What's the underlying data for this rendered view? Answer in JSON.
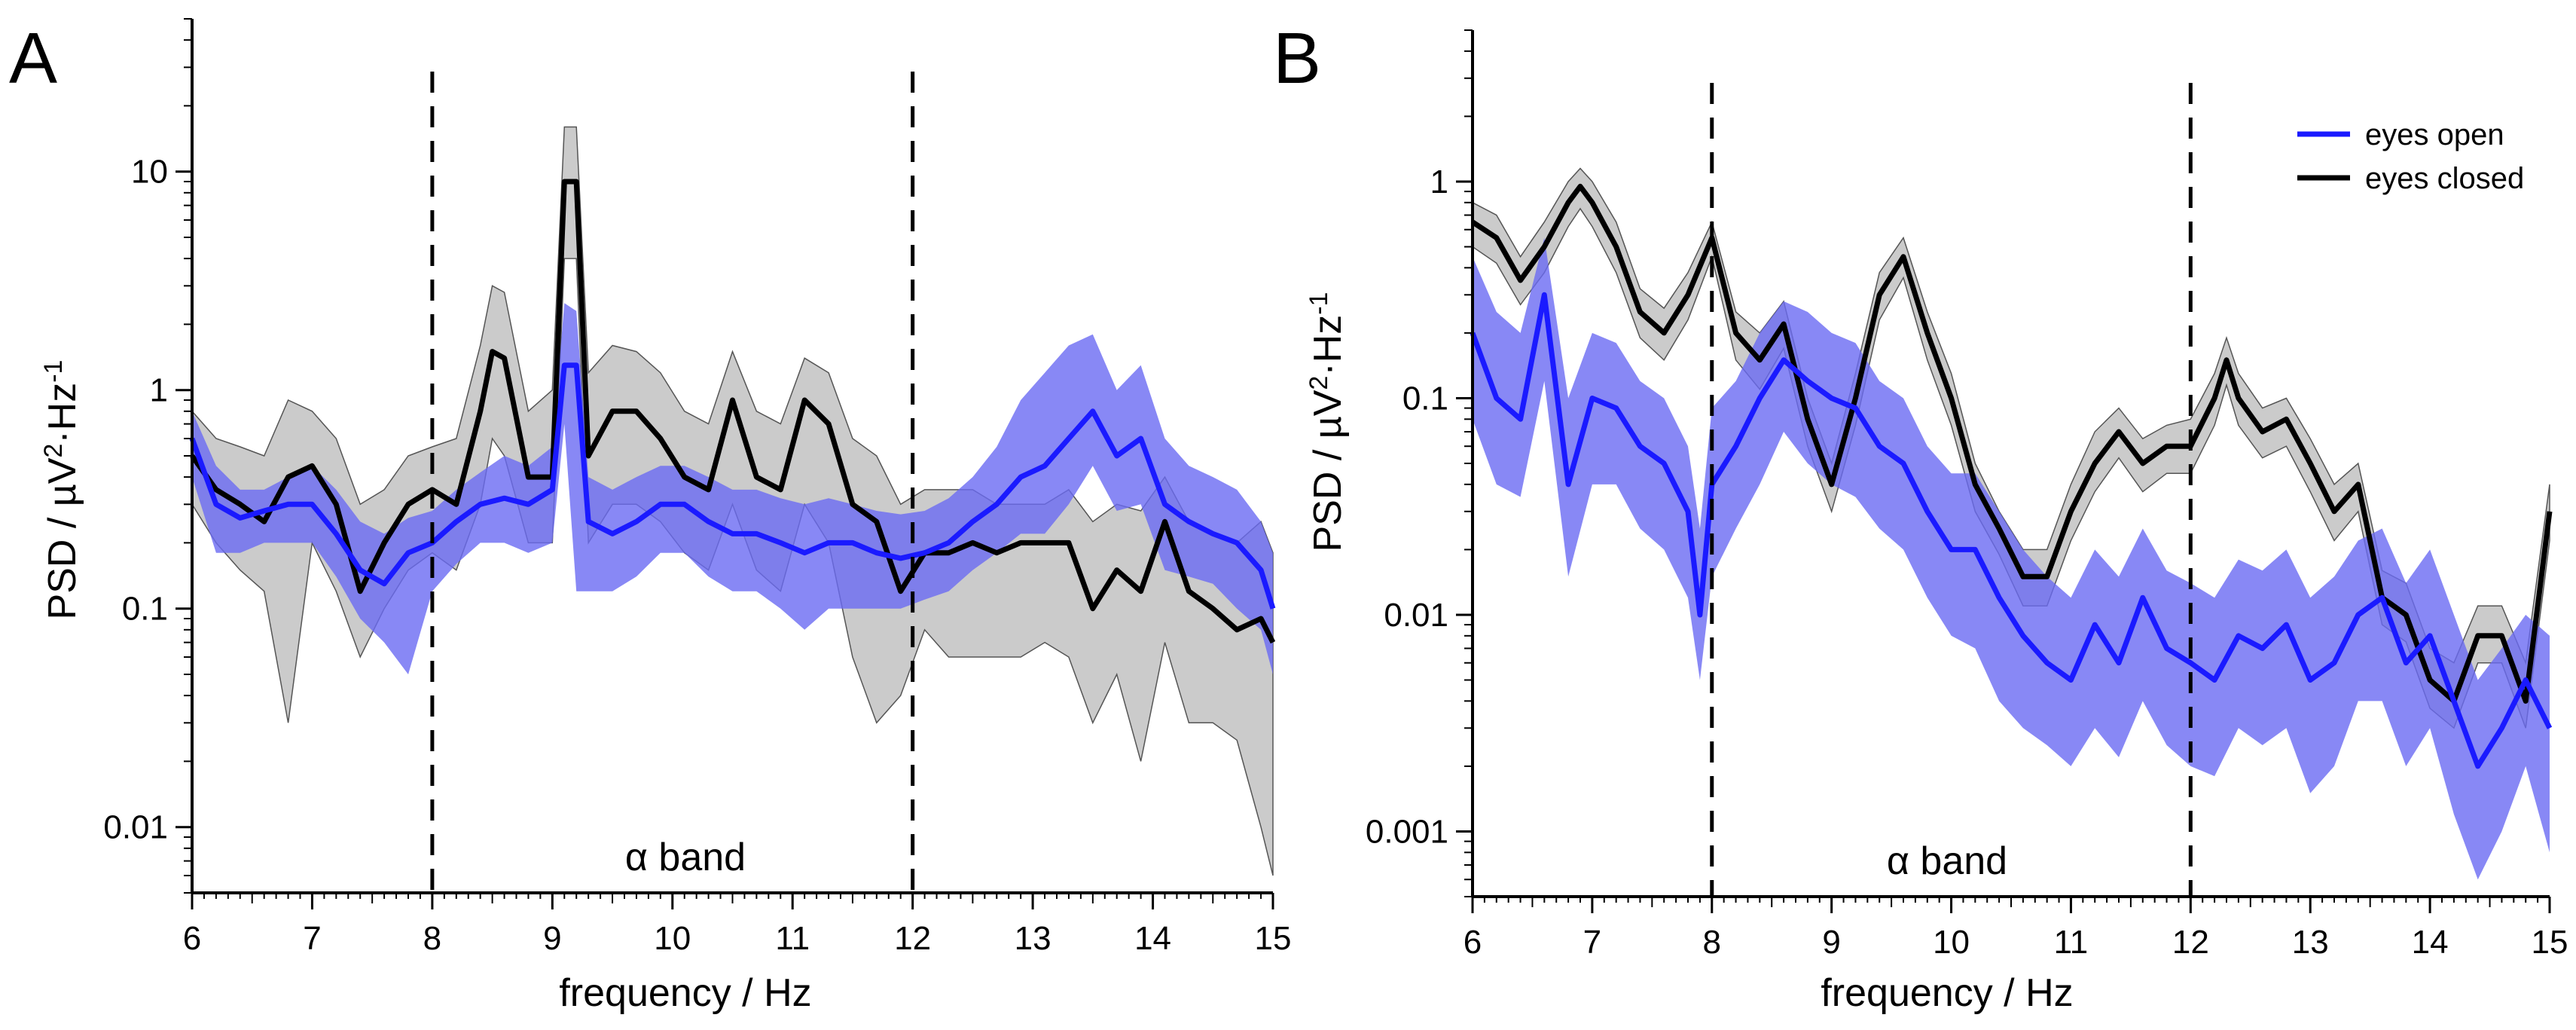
{
  "chart_data": [
    {
      "panel_label": "A",
      "type": "line",
      "scale": "log-y",
      "xlabel": "frequency / Hz",
      "ylabel": "PSD / µV²·Hz⁻¹",
      "ylabel_parts": {
        "base": "PSD / µV",
        "sup1": "2",
        "mid": "·Hz",
        "sup2": "-1"
      },
      "xlim": [
        6,
        15
      ],
      "ylim": [
        0.005,
        50
      ],
      "xticks": [
        6,
        7,
        8,
        9,
        10,
        11,
        12,
        13,
        14,
        15
      ],
      "xtick_labels": [
        "6",
        "7",
        "8",
        "9",
        "10",
        "11",
        "12",
        "13",
        "14",
        "15"
      ],
      "yticks": [
        0.01,
        0.1,
        1,
        10
      ],
      "ytick_labels": [
        "0.01",
        "0.1",
        "1",
        "10"
      ],
      "band_label": "α band",
      "band": [
        8,
        12
      ],
      "series": [
        {
          "name": "eyes open",
          "color": "#1a1aff",
          "band_color": "#6a6af2",
          "x": [
            6.0,
            6.2,
            6.4,
            6.6,
            6.8,
            7.0,
            7.2,
            7.4,
            7.6,
            7.8,
            8.0,
            8.2,
            8.4,
            8.6,
            8.8,
            9.0,
            9.1,
            9.2,
            9.3,
            9.5,
            9.7,
            9.9,
            10.1,
            10.3,
            10.5,
            10.7,
            10.9,
            11.1,
            11.3,
            11.5,
            11.7,
            11.9,
            12.1,
            12.3,
            12.5,
            12.7,
            12.9,
            13.1,
            13.3,
            13.5,
            13.7,
            13.9,
            14.1,
            14.3,
            14.5,
            14.7,
            14.9,
            15.0
          ],
          "mean": [
            0.6,
            0.3,
            0.26,
            0.28,
            0.3,
            0.3,
            0.22,
            0.15,
            0.13,
            0.18,
            0.2,
            0.25,
            0.3,
            0.32,
            0.3,
            0.35,
            1.3,
            1.3,
            0.25,
            0.22,
            0.25,
            0.3,
            0.3,
            0.25,
            0.22,
            0.22,
            0.2,
            0.18,
            0.2,
            0.2,
            0.18,
            0.17,
            0.18,
            0.2,
            0.25,
            0.3,
            0.4,
            0.45,
            0.6,
            0.8,
            0.5,
            0.6,
            0.3,
            0.25,
            0.22,
            0.2,
            0.15,
            0.1
          ],
          "upper": [
            0.8,
            0.45,
            0.35,
            0.35,
            0.4,
            0.45,
            0.35,
            0.25,
            0.22,
            0.26,
            0.28,
            0.35,
            0.42,
            0.5,
            0.45,
            0.55,
            2.5,
            2.3,
            0.4,
            0.35,
            0.4,
            0.45,
            0.45,
            0.4,
            0.35,
            0.35,
            0.32,
            0.3,
            0.32,
            0.3,
            0.28,
            0.27,
            0.28,
            0.32,
            0.4,
            0.55,
            0.9,
            1.2,
            1.6,
            1.8,
            1.0,
            1.3,
            0.6,
            0.45,
            0.4,
            0.35,
            0.25,
            0.18
          ],
          "lower": [
            0.4,
            0.18,
            0.18,
            0.2,
            0.2,
            0.2,
            0.14,
            0.09,
            0.07,
            0.05,
            0.12,
            0.16,
            0.2,
            0.2,
            0.18,
            0.2,
            0.7,
            0.12,
            0.12,
            0.12,
            0.14,
            0.18,
            0.18,
            0.14,
            0.12,
            0.12,
            0.1,
            0.08,
            0.1,
            0.1,
            0.1,
            0.1,
            0.11,
            0.12,
            0.15,
            0.18,
            0.22,
            0.22,
            0.3,
            0.45,
            0.28,
            0.3,
            0.15,
            0.14,
            0.13,
            0.1,
            0.08,
            0.05
          ]
        },
        {
          "name": "eyes closed",
          "color": "#000000",
          "band_color": "#c8c8c8",
          "x": [
            6.0,
            6.2,
            6.4,
            6.6,
            6.8,
            7.0,
            7.2,
            7.4,
            7.6,
            7.8,
            8.0,
            8.2,
            8.4,
            8.5,
            8.6,
            8.8,
            9.0,
            9.1,
            9.2,
            9.3,
            9.5,
            9.7,
            9.9,
            10.1,
            10.3,
            10.5,
            10.7,
            10.9,
            11.1,
            11.3,
            11.5,
            11.7,
            11.9,
            12.1,
            12.3,
            12.5,
            12.7,
            12.9,
            13.1,
            13.3,
            13.5,
            13.7,
            13.9,
            14.1,
            14.3,
            14.5,
            14.7,
            14.9,
            15.0
          ],
          "mean": [
            0.5,
            0.35,
            0.3,
            0.25,
            0.4,
            0.45,
            0.3,
            0.12,
            0.2,
            0.3,
            0.35,
            0.3,
            0.8,
            1.5,
            1.4,
            0.4,
            0.4,
            9.0,
            9.0,
            0.5,
            0.8,
            0.8,
            0.6,
            0.4,
            0.35,
            0.9,
            0.4,
            0.35,
            0.9,
            0.7,
            0.3,
            0.25,
            0.12,
            0.18,
            0.18,
            0.2,
            0.18,
            0.2,
            0.2,
            0.2,
            0.1,
            0.15,
            0.12,
            0.25,
            0.12,
            0.1,
            0.08,
            0.09,
            0.07
          ],
          "upper": [
            0.8,
            0.6,
            0.55,
            0.5,
            0.9,
            0.8,
            0.6,
            0.3,
            0.35,
            0.5,
            0.55,
            0.6,
            1.6,
            3.0,
            2.8,
            0.8,
            1.0,
            16.0,
            16.0,
            1.2,
            1.6,
            1.5,
            1.2,
            0.8,
            0.7,
            1.5,
            0.8,
            0.7,
            1.4,
            1.2,
            0.6,
            0.5,
            0.3,
            0.35,
            0.35,
            0.35,
            0.3,
            0.3,
            0.3,
            0.35,
            0.25,
            0.3,
            0.28,
            0.4,
            0.25,
            0.22,
            0.2,
            0.25,
            0.18
          ],
          "lower": [
            0.3,
            0.2,
            0.15,
            0.12,
            0.03,
            0.2,
            0.12,
            0.06,
            0.1,
            0.15,
            0.18,
            0.15,
            0.3,
            0.6,
            0.5,
            0.2,
            0.2,
            4.0,
            4.0,
            0.2,
            0.3,
            0.3,
            0.25,
            0.18,
            0.15,
            0.3,
            0.15,
            0.12,
            0.3,
            0.2,
            0.06,
            0.03,
            0.04,
            0.08,
            0.06,
            0.06,
            0.06,
            0.06,
            0.07,
            0.06,
            0.03,
            0.05,
            0.02,
            0.07,
            0.03,
            0.03,
            0.025,
            0.01,
            0.006
          ]
        }
      ]
    },
    {
      "panel_label": "B",
      "type": "line",
      "scale": "log-y",
      "xlabel": "frequency / Hz",
      "ylabel": "PSD / µV²·Hz⁻¹",
      "ylabel_parts": {
        "base": "PSD / µV",
        "sup1": "2",
        "mid": "·Hz",
        "sup2": "-1"
      },
      "xlim": [
        6,
        15
      ],
      "ylim": [
        0.0005,
        5
      ],
      "xticks": [
        6,
        7,
        8,
        9,
        10,
        11,
        12,
        13,
        14,
        15
      ],
      "xtick_labels": [
        "6",
        "7",
        "8",
        "9",
        "10",
        "11",
        "12",
        "13",
        "14",
        "15"
      ],
      "yticks": [
        0.001,
        0.01,
        0.1,
        1
      ],
      "ytick_labels": [
        "0.001",
        "0.01",
        "0.1",
        "1"
      ],
      "band_label": "α band",
      "band": [
        8,
        12
      ],
      "legend": {
        "position": "top-right",
        "entries": [
          "eyes open",
          "eyes closed"
        ]
      },
      "series": [
        {
          "name": "eyes open",
          "color": "#1a1aff",
          "band_color": "#6a6af2",
          "x": [
            6.0,
            6.2,
            6.4,
            6.6,
            6.8,
            7.0,
            7.2,
            7.4,
            7.6,
            7.8,
            7.9,
            8.0,
            8.2,
            8.4,
            8.6,
            8.8,
            9.0,
            9.2,
            9.4,
            9.6,
            9.8,
            10.0,
            10.2,
            10.4,
            10.6,
            10.8,
            11.0,
            11.2,
            11.4,
            11.6,
            11.8,
            12.0,
            12.2,
            12.4,
            12.6,
            12.8,
            13.0,
            13.2,
            13.4,
            13.6,
            13.8,
            14.0,
            14.2,
            14.4,
            14.6,
            14.8,
            15.0
          ],
          "mean": [
            0.2,
            0.1,
            0.08,
            0.3,
            0.04,
            0.1,
            0.09,
            0.06,
            0.05,
            0.03,
            0.01,
            0.04,
            0.06,
            0.1,
            0.15,
            0.12,
            0.1,
            0.09,
            0.06,
            0.05,
            0.03,
            0.02,
            0.02,
            0.012,
            0.008,
            0.006,
            0.005,
            0.009,
            0.006,
            0.012,
            0.007,
            0.006,
            0.005,
            0.008,
            0.007,
            0.009,
            0.005,
            0.006,
            0.01,
            0.012,
            0.006,
            0.008,
            0.004,
            0.002,
            0.003,
            0.005,
            0.003
          ],
          "upper": [
            0.45,
            0.25,
            0.2,
            0.55,
            0.1,
            0.2,
            0.18,
            0.12,
            0.1,
            0.06,
            0.025,
            0.09,
            0.12,
            0.2,
            0.28,
            0.25,
            0.2,
            0.18,
            0.12,
            0.1,
            0.06,
            0.045,
            0.045,
            0.03,
            0.02,
            0.015,
            0.012,
            0.02,
            0.015,
            0.025,
            0.016,
            0.014,
            0.012,
            0.018,
            0.016,
            0.02,
            0.012,
            0.015,
            0.022,
            0.025,
            0.014,
            0.02,
            0.01,
            0.005,
            0.007,
            0.01,
            0.008
          ],
          "lower": [
            0.08,
            0.04,
            0.035,
            0.12,
            0.015,
            0.04,
            0.04,
            0.025,
            0.02,
            0.012,
            0.005,
            0.015,
            0.025,
            0.04,
            0.07,
            0.05,
            0.04,
            0.035,
            0.025,
            0.02,
            0.012,
            0.008,
            0.007,
            0.004,
            0.003,
            0.0025,
            0.002,
            0.003,
            0.0022,
            0.004,
            0.0025,
            0.002,
            0.0018,
            0.003,
            0.0025,
            0.003,
            0.0015,
            0.002,
            0.004,
            0.004,
            0.002,
            0.003,
            0.0012,
            0.0006,
            0.001,
            0.002,
            0.0008
          ]
        },
        {
          "name": "eyes closed",
          "color": "#000000",
          "band_color": "#c8c8c8",
          "x": [
            6.0,
            6.2,
            6.4,
            6.6,
            6.8,
            6.9,
            7.0,
            7.2,
            7.4,
            7.6,
            7.8,
            8.0,
            8.2,
            8.4,
            8.6,
            8.8,
            9.0,
            9.2,
            9.4,
            9.6,
            9.8,
            10.0,
            10.2,
            10.4,
            10.6,
            10.8,
            11.0,
            11.2,
            11.4,
            11.6,
            11.8,
            12.0,
            12.2,
            12.3,
            12.4,
            12.6,
            12.8,
            13.0,
            13.2,
            13.4,
            13.6,
            13.8,
            14.0,
            14.2,
            14.4,
            14.6,
            14.8,
            15.0
          ],
          "mean": [
            0.65,
            0.55,
            0.35,
            0.5,
            0.8,
            0.95,
            0.8,
            0.5,
            0.25,
            0.2,
            0.3,
            0.55,
            0.2,
            0.15,
            0.22,
            0.08,
            0.04,
            0.1,
            0.3,
            0.45,
            0.2,
            0.1,
            0.04,
            0.025,
            0.015,
            0.015,
            0.03,
            0.05,
            0.07,
            0.05,
            0.06,
            0.06,
            0.1,
            0.15,
            0.1,
            0.07,
            0.08,
            0.05,
            0.03,
            0.04,
            0.012,
            0.01,
            0.005,
            0.004,
            0.008,
            0.008,
            0.004,
            0.03
          ],
          "upper": [
            0.8,
            0.7,
            0.45,
            0.65,
            1.0,
            1.15,
            1.0,
            0.65,
            0.32,
            0.26,
            0.38,
            0.65,
            0.25,
            0.2,
            0.28,
            0.1,
            0.05,
            0.13,
            0.38,
            0.55,
            0.25,
            0.13,
            0.05,
            0.03,
            0.02,
            0.02,
            0.04,
            0.07,
            0.09,
            0.065,
            0.075,
            0.08,
            0.13,
            0.19,
            0.13,
            0.09,
            0.1,
            0.065,
            0.04,
            0.05,
            0.016,
            0.014,
            0.007,
            0.006,
            0.011,
            0.011,
            0.006,
            0.04
          ],
          "lower": [
            0.5,
            0.42,
            0.27,
            0.38,
            0.62,
            0.75,
            0.62,
            0.38,
            0.19,
            0.15,
            0.23,
            0.45,
            0.15,
            0.11,
            0.17,
            0.06,
            0.03,
            0.075,
            0.23,
            0.36,
            0.15,
            0.075,
            0.03,
            0.019,
            0.011,
            0.011,
            0.022,
            0.037,
            0.053,
            0.037,
            0.045,
            0.045,
            0.075,
            0.115,
            0.075,
            0.053,
            0.06,
            0.037,
            0.022,
            0.03,
            0.009,
            0.0075,
            0.0037,
            0.003,
            0.006,
            0.006,
            0.003,
            0.022
          ]
        }
      ]
    }
  ]
}
